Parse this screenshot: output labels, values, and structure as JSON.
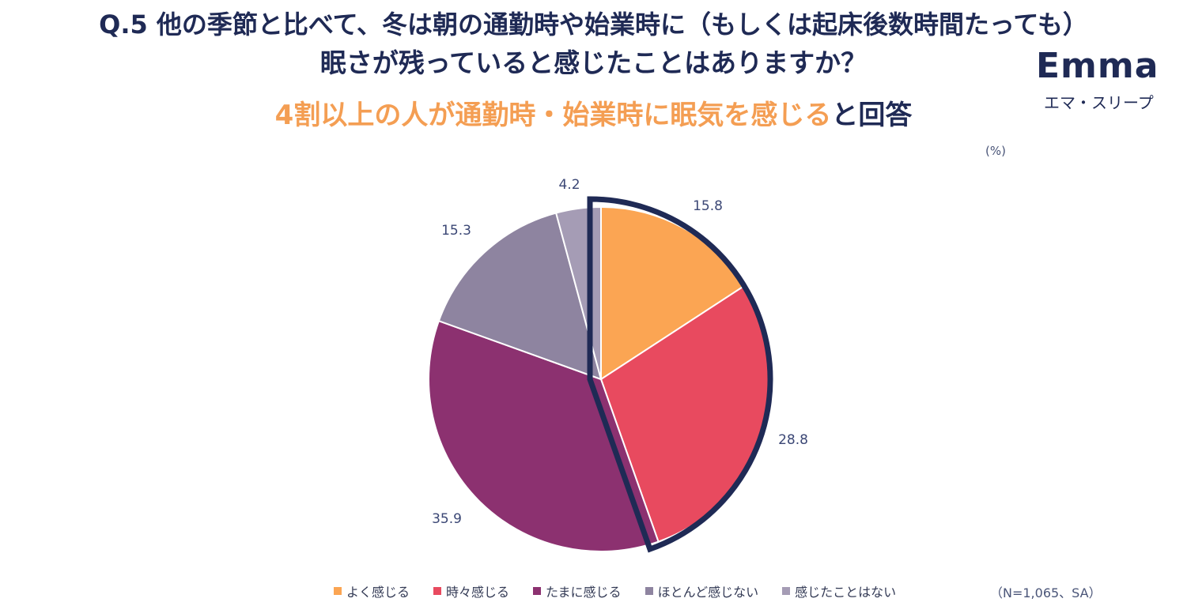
{
  "header": {
    "title_line1": "Q.5 他の季節と比べて、冬は朝の通勤時や始業時に（もしくは起床後数時間たっても）",
    "title_line2": "眠さが残っていると感じたことはありますか？",
    "subtitle_accent": "4割以上の人が通勤時・始業時に眠気を感じる",
    "subtitle_tail": "と回答"
  },
  "logo": {
    "word": "Emma",
    "sub": "エマ・スリープ"
  },
  "unit_label": "(%)",
  "note": "（N=1,065、SA）",
  "chart_data": {
    "type": "pie",
    "categories": [
      "よく感じる",
      "時々感じる",
      "たまに感じる",
      "ほとんど感じない",
      "感じたことはない"
    ],
    "values": [
      15.8,
      28.8,
      35.9,
      15.3,
      4.2
    ],
    "value_labels": [
      "15.8",
      "28.8",
      "35.9",
      "15.3",
      "4.2"
    ],
    "colors": [
      "#fba553",
      "#e84a5f",
      "#8c3170",
      "#8e84a0",
      "#a59cb5"
    ],
    "highlight": {
      "slices": [
        0,
        1
      ],
      "color": "#1f2a55"
    },
    "legend_position": "bottom"
  }
}
